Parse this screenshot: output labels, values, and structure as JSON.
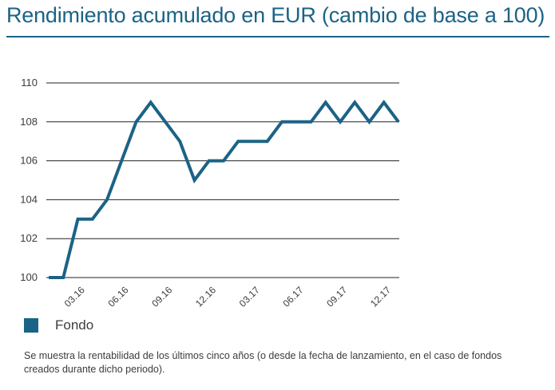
{
  "title": "Rendimiento acumulado en EUR (cambio de base a 100)",
  "legend": {
    "series_label": "Fondo"
  },
  "footnote": "Se muestra la rentabilidad de los últimos cinco años (o desde la fecha de lanzamiento, en el caso de fondos creados durante dicho periodo).",
  "colors": {
    "series": "#1b6386",
    "grid": "#222222",
    "text": "#3c3c3c"
  },
  "chart_data": {
    "type": "line",
    "title": "Rendimiento acumulado en EUR (cambio de base a 100)",
    "xlabel": "",
    "ylabel": "",
    "ylim": [
      100,
      110
    ],
    "yticks": [
      100,
      102,
      104,
      106,
      108,
      110
    ],
    "x": [
      "01.16",
      "02.16",
      "03.16",
      "04.16",
      "05.16",
      "06.16",
      "07.16",
      "08.16",
      "09.16",
      "10.16",
      "11.16",
      "12.16",
      "01.17",
      "02.17",
      "03.17",
      "04.17",
      "05.17",
      "06.17",
      "07.17",
      "08.17",
      "09.17",
      "10.17",
      "11.17",
      "12.17",
      "01.18"
    ],
    "xtick_labels": [
      "03.16",
      "06.16",
      "09.16",
      "12.16",
      "03.17",
      "06.17",
      "09.17",
      "12.17"
    ],
    "grid": true,
    "legend_position": "bottom-left",
    "series": [
      {
        "name": "Fondo",
        "values": [
          100,
          100,
          103,
          103,
          104,
          106,
          108,
          109,
          108,
          107,
          105,
          106,
          106,
          107,
          107,
          107,
          108,
          108,
          108,
          109,
          108,
          109,
          108,
          109,
          108
        ]
      }
    ]
  }
}
